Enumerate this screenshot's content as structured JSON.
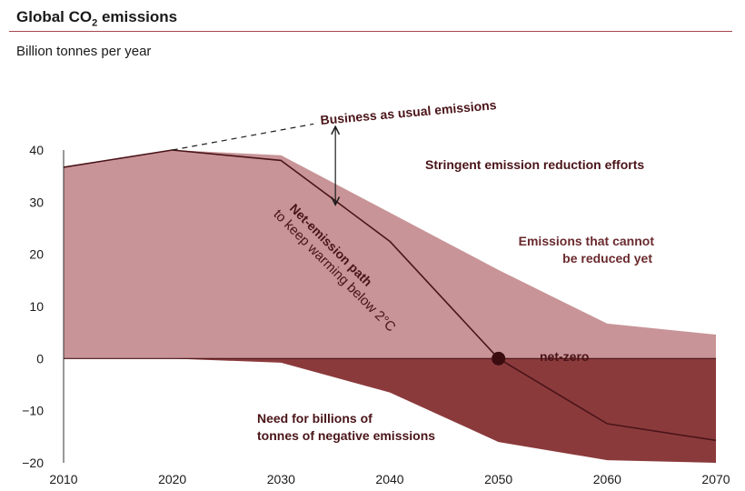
{
  "header": {
    "title_prefix": "Global CO",
    "title_sub": "2",
    "title_suffix": " emissions",
    "subtitle": "Billion tonnes per year"
  },
  "chart_data": {
    "type": "area",
    "title": "Global CO2 emissions",
    "ylabel": "Billion tonnes per year",
    "xlim": [
      2010,
      2070
    ],
    "ylim": [
      -20,
      40
    ],
    "x_ticks": [
      2010,
      2020,
      2030,
      2040,
      2050,
      2060,
      2070
    ],
    "y_ticks": [
      40,
      30,
      20,
      10,
      0,
      -10,
      -20
    ],
    "y_tick_labels": [
      "40",
      "30",
      "20",
      "10",
      "0",
      "−10",
      "−20"
    ],
    "grid": false,
    "series": [
      {
        "role": "gross-emissions-area",
        "x": [
          2010,
          2020,
          2030,
          2040,
          2050,
          2060,
          2070
        ],
        "values": [
          36.7,
          40.0,
          39.0,
          28.0,
          17.0,
          6.7,
          4.6
        ]
      },
      {
        "role": "negative-emissions-area",
        "x": [
          2010,
          2020,
          2030,
          2040,
          2050,
          2060,
          2070
        ],
        "values": [
          0,
          0,
          -0.8,
          -6.5,
          -16.0,
          -19.5,
          -20.0
        ]
      },
      {
        "name": "Net-emission path",
        "x": [
          2010,
          2020,
          2030,
          2040,
          2050,
          2060,
          2070
        ],
        "values": [
          36.7,
          40.0,
          38.0,
          22.5,
          0,
          -12.5,
          -15.7
        ]
      },
      {
        "name": "Business as usual emissions",
        "style": "dashed",
        "x": [
          2020,
          2033
        ],
        "values": [
          40.0,
          45.0
        ]
      }
    ],
    "markers": [
      {
        "label": "net-zero",
        "x": 2050,
        "y": 0
      }
    ],
    "arrow": {
      "x": 2035,
      "y_from": 44.5,
      "y_to": 29.5
    },
    "annotations": {
      "business_as_usual": "Business as usual emissions",
      "stringent_efforts": "Stringent emission reduction efforts",
      "net_emission_line1": "Net-emission path",
      "net_emission_line2": "to keep warming below 2°C",
      "cannot_reduce_line1": "Emissions that cannot",
      "cannot_reduce_line2": "be reduced yet",
      "net_zero": "net-zero",
      "negative_line1": "Need for billions of",
      "negative_line2": "tonnes of negative emissions"
    }
  },
  "colors": {
    "positive_area": "#c89497",
    "negative_area": "#8b3a3c",
    "line": "#4a1418",
    "dot": "#3a0c10",
    "accent": "#a8474f",
    "annotation_dark": "#4a1418",
    "annotation_light": "#6a2a2e"
  }
}
